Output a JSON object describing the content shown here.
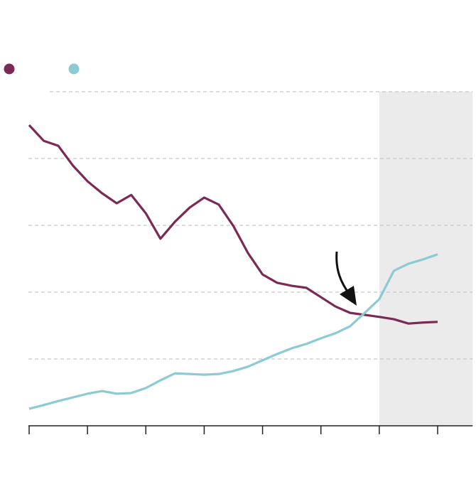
{
  "chart_data": {
    "type": "line",
    "x": [
      0,
      1,
      2,
      3,
      4,
      5,
      6,
      7,
      8,
      9,
      10,
      11,
      12,
      13,
      14,
      15,
      16,
      17,
      18,
      19,
      20,
      21,
      22,
      23,
      24,
      25,
      26,
      27,
      28
    ],
    "series": [
      {
        "color": "#7b2a55",
        "values": [
          90.0,
          85.3,
          83.8,
          77.9,
          73.2,
          69.6,
          66.6,
          69.1,
          63.6,
          56.0,
          61.1,
          65.3,
          68.3,
          66.2,
          59.8,
          51.7,
          45.3,
          42.8,
          41.9,
          41.3,
          38.5,
          35.7,
          33.8,
          33.2,
          32.6,
          31.9,
          30.6,
          30.9,
          31.1
        ]
      },
      {
        "color": "#8ccbd3",
        "values": [
          5.1,
          6.2,
          7.4,
          8.5,
          9.6,
          10.4,
          9.6,
          9.8,
          11.3,
          13.6,
          15.7,
          15.5,
          15.3,
          15.5,
          16.4,
          17.7,
          19.6,
          21.5,
          23.2,
          24.5,
          26.2,
          27.7,
          29.8,
          33.8,
          37.9,
          46.4,
          48.5,
          49.8,
          51.3
        ]
      }
    ],
    "xlim": [
      0,
      30.4
    ],
    "xticks": [
      0,
      4,
      8,
      12,
      16,
      20,
      24,
      28
    ],
    "ylim": [
      0,
      100
    ],
    "yticks": [
      0,
      20,
      40,
      60,
      80,
      100
    ],
    "grid": true,
    "shaded_region": [
      24,
      30.4
    ],
    "shade_color": "#ebebeb"
  }
}
